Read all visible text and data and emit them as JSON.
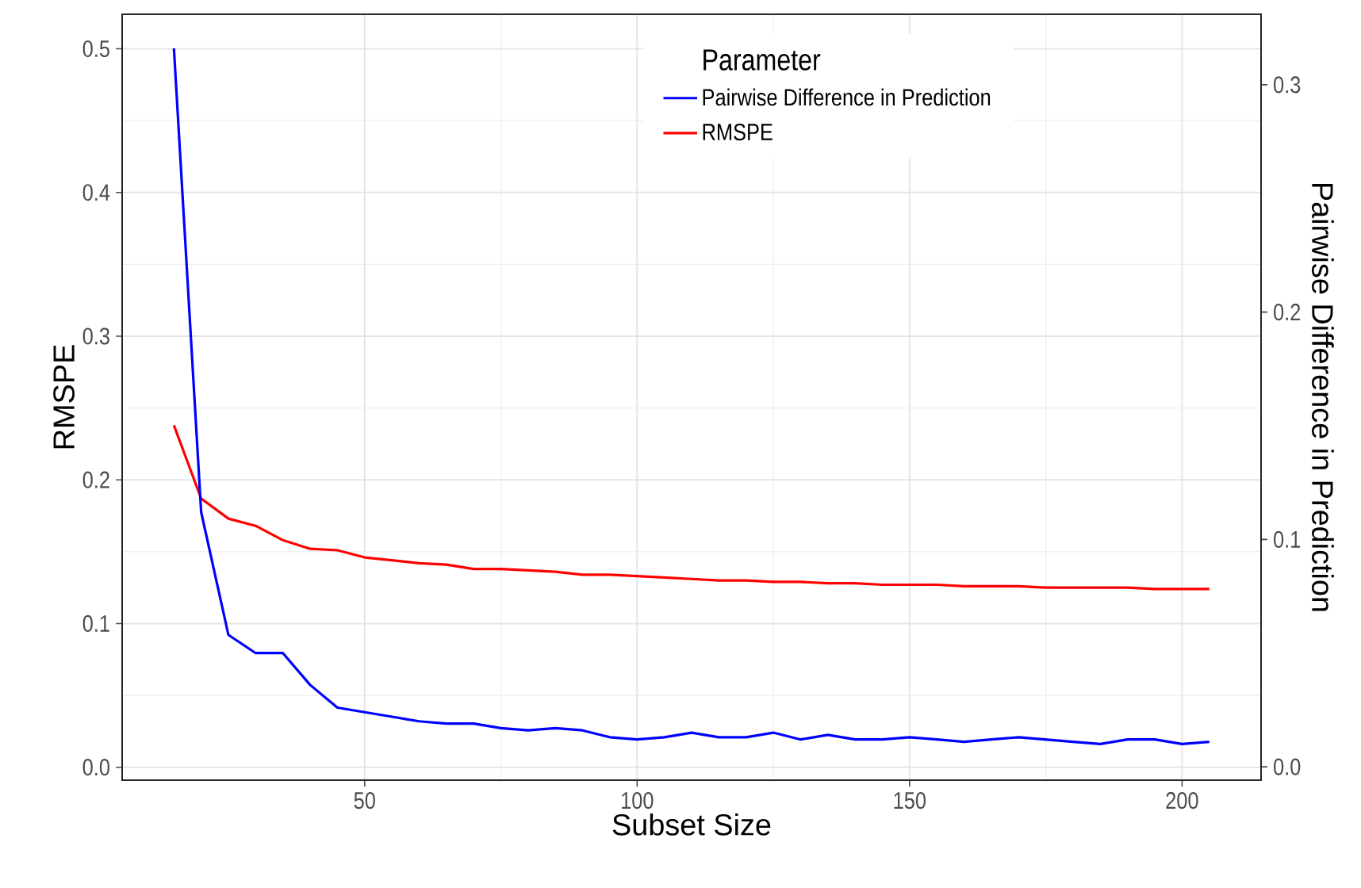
{
  "chart_data": {
    "type": "line",
    "xlabel": "Subset Size",
    "ylabel": "RMSPE",
    "y2label": "Pairwise Difference in Prediction",
    "legend_title": "Parameter",
    "x": [
      15,
      20,
      25,
      30,
      35,
      40,
      45,
      50,
      55,
      60,
      65,
      70,
      75,
      80,
      85,
      90,
      95,
      100,
      105,
      110,
      115,
      120,
      125,
      130,
      135,
      140,
      145,
      150,
      155,
      160,
      165,
      170,
      175,
      180,
      185,
      190,
      195,
      200,
      205
    ],
    "series": [
      {
        "name": "Pairwise Difference in Prediction",
        "color": "#0000ff",
        "axis": "y2",
        "values": [
          0.316,
          0.112,
          0.058,
          0.05,
          0.05,
          0.036,
          0.026,
          0.024,
          0.022,
          0.02,
          0.019,
          0.019,
          0.017,
          0.016,
          0.017,
          0.016,
          0.013,
          0.012,
          0.013,
          0.015,
          0.013,
          0.013,
          0.015,
          0.012,
          0.014,
          0.012,
          0.012,
          0.013,
          0.012,
          0.011,
          0.012,
          0.013,
          0.012,
          0.011,
          0.01,
          0.012,
          0.012,
          0.01,
          0.011
        ]
      },
      {
        "name": "RMSPE",
        "color": "#ff0000",
        "values": [
          0.238,
          0.187,
          0.173,
          0.168,
          0.158,
          0.152,
          0.151,
          0.146,
          0.144,
          0.142,
          0.141,
          0.138,
          0.138,
          0.137,
          0.136,
          0.134,
          0.134,
          0.133,
          0.132,
          0.131,
          0.13,
          0.13,
          0.129,
          0.129,
          0.128,
          0.128,
          0.127,
          0.127,
          0.127,
          0.126,
          0.126,
          0.126,
          0.125,
          0.125,
          0.125,
          0.125,
          0.124,
          0.124,
          0.124
        ]
      }
    ],
    "xlim": [
      5.5,
      214.5
    ],
    "xticks": [
      50,
      100,
      150,
      200
    ],
    "ylim": [
      -0.009,
      0.524
    ],
    "yticks": [
      {
        "value": 0,
        "label": "0.0"
      },
      0.1,
      0.2,
      0.3,
      0.4,
      0.5
    ],
    "y2lim": [
      -0.0059,
      0.331
    ],
    "y2ticks": [
      {
        "value": 0,
        "label": "0.0"
      },
      0.1,
      0.2,
      0.3
    ],
    "grid": true,
    "legend": "top",
    "marker": "none",
    "line_style": "solid"
  }
}
